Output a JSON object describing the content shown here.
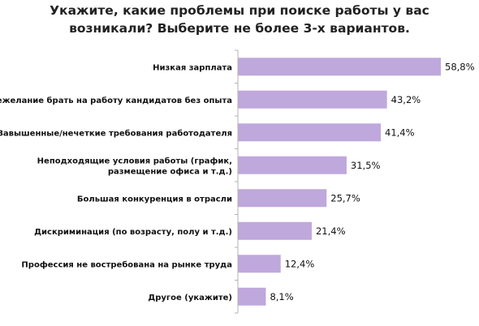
{
  "chart_data": {
    "type": "bar",
    "orientation": "horizontal",
    "title": "Укажите, какие проблемы при поиске работы у вас возникали? Выберите не более 3-х вариантов.",
    "categories": [
      "Низкая зарплата",
      "Нежелание брать на работу кандидатов без опыта",
      "Завышенные/нечеткие требования работодателя",
      "Неподходящие условия работы (график, размещение офиса и т.д.)",
      "Большая конкуренция в отрасли",
      "Дискриминация (по возрасту, полу и т.д.)",
      "Профессия не востребована на рынке труда",
      "Другое (укажите)"
    ],
    "values": [
      58.8,
      43.2,
      41.4,
      31.5,
      25.7,
      21.4,
      12.4,
      8.1
    ],
    "value_labels": [
      "58,8%",
      "43,2%",
      "41,4%",
      "31,5%",
      "25,7%",
      "21,4%",
      "12,4%",
      "8,1%"
    ],
    "xlim": [
      0,
      70
    ],
    "grid": false,
    "legend": "none",
    "bar_color": "#bfa8dc",
    "axis_color": "#b3b3b3"
  }
}
